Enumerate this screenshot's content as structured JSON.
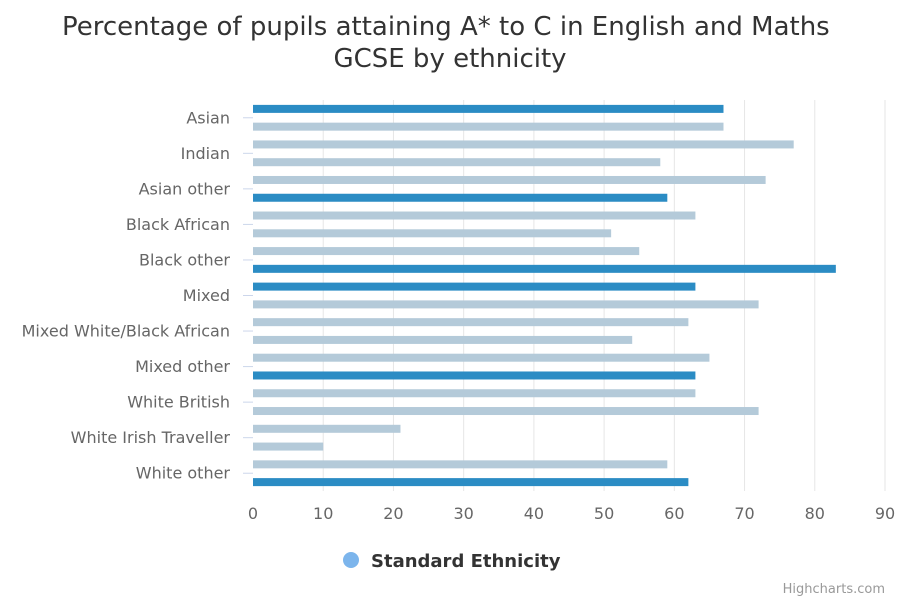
{
  "chart_data": {
    "type": "bar",
    "orientation": "horizontal",
    "title": "Percentage of pupils attaining A* to C in English and Maths GCSE by ethnicity",
    "title_lines": [
      "Percentage of pupils attaining A* to C in English and Maths",
      "GCSE by ethnicity"
    ],
    "xlim": [
      0,
      90
    ],
    "x_ticks": [
      0,
      10,
      20,
      30,
      40,
      50,
      60,
      70,
      80,
      90
    ],
    "grid": true,
    "category_labels": [
      "Asian",
      "Indian",
      "Asian other",
      "Black African",
      "Black other",
      "Mixed",
      "Mixed White/Black African",
      "Mixed other",
      "White British",
      "White Irish Traveller",
      "White other"
    ],
    "series": [
      {
        "name": "Standard Ethnicity",
        "values": [
          67,
          67,
          77,
          58,
          73,
          59,
          63,
          51,
          55,
          83,
          63,
          72,
          62,
          54,
          65,
          63,
          63,
          72,
          21,
          10,
          59,
          62
        ],
        "highlight": [
          true,
          false,
          false,
          false,
          false,
          true,
          false,
          false,
          false,
          true,
          true,
          false,
          false,
          false,
          false,
          true,
          false,
          false,
          false,
          false,
          false,
          true
        ]
      }
    ],
    "legend": {
      "label": "Standard Ethnicity",
      "position": "bottom-center"
    },
    "colors": {
      "highlight": "#2b8cc4",
      "normal": "#b4cad9",
      "legend_marker": "#7cb5ec",
      "grid": "#e6e6e6"
    },
    "credits": "Highcharts.com"
  }
}
